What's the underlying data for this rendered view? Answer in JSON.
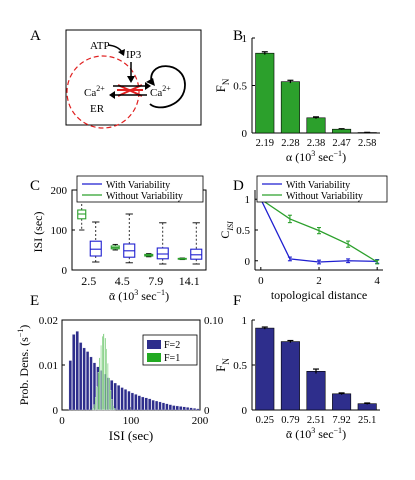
{
  "colors": {
    "green": "#2ca02c",
    "green_dark": "#1f7a1f",
    "blue": "#1f1fd0",
    "navy": "#2e2e8c",
    "red_dashed": "#e02020",
    "hist_green": "#22aa22"
  },
  "panels": {
    "A": {
      "letter": "A",
      "labels": {
        "atp": "ATP",
        "ip3": "IP3",
        "ca_left": "Ca",
        "ca_left_sup": "2+",
        "ca_right": "Ca",
        "ca_right_sup": "2+",
        "er": "ER"
      }
    },
    "B": {
      "letter": "B"
    },
    "C": {
      "letter": "C"
    },
    "D": {
      "letter": "D"
    },
    "E": {
      "letter": "E"
    },
    "F": {
      "letter": "F"
    }
  },
  "chart_data": [
    {
      "panel": "B",
      "type": "bar",
      "categories": [
        "2.19",
        "2.28",
        "2.38",
        "2.47",
        "2.58"
      ],
      "values": [
        0.84,
        0.54,
        0.16,
        0.04,
        0.005
      ],
      "errors": [
        0.015,
        0.015,
        0.01,
        0.005,
        0.002
      ],
      "ylabel": "F",
      "ylabel_sub": "N",
      "xlabel": "α (10",
      "xlabel_sup": "3",
      "xlabel_end": " sec",
      "xlabel_sup2": "−1",
      "xlabel_close": ")",
      "ylim": [
        0,
        1
      ],
      "yticks": [
        "0",
        "0.5",
        "1"
      ],
      "color": "#2ca02c"
    },
    {
      "panel": "C",
      "type": "box",
      "categories": [
        "2.5",
        "4.5",
        "7.9",
        "14.1"
      ],
      "series": [
        {
          "name": "With Variability",
          "color": "#1f1fd0",
          "boxes": [
            {
              "min": 20,
              "q1": 35,
              "median": 52,
              "q3": 72,
              "max": 120
            },
            {
              "min": 18,
              "q1": 32,
              "median": 48,
              "q3": 65,
              "max": 140
            },
            {
              "min": 15,
              "q1": 28,
              "median": 40,
              "q3": 55,
              "max": 118
            },
            {
              "min": 15,
              "q1": 27,
              "median": 38,
              "q3": 52,
              "max": 118
            }
          ]
        },
        {
          "name": "Without Variability",
          "color": "#2ca02c",
          "boxes": [
            {
              "min": 100,
              "q1": 128,
              "median": 140,
              "q3": 150,
              "max": 185
            },
            {
              "min": 50,
              "q1": 53,
              "median": 56,
              "q3": 60,
              "max": 64
            },
            {
              "min": 33,
              "q1": 35,
              "median": 37,
              "q3": 39,
              "max": 41
            },
            {
              "min": 26,
              "q1": 27,
              "median": 28,
              "q3": 29,
              "max": 30
            }
          ]
        }
      ],
      "ylabel": "ISI (sec)",
      "xlabel": "ᾱ (10",
      "xlabel_sup": "3",
      "xlabel_end": " sec",
      "xlabel_sup2": "−1",
      "xlabel_close": ")",
      "ylim": [
        0,
        200
      ],
      "yticks": [
        "0",
        "100",
        "200"
      ],
      "legend_placement": "top"
    },
    {
      "panel": "D",
      "type": "line",
      "x": [
        0,
        1,
        2,
        3,
        4
      ],
      "series": [
        {
          "name": "With Variability",
          "color": "#1f1fd0",
          "values": [
            1.0,
            0.03,
            -0.02,
            0.0,
            -0.01
          ],
          "errors": [
            0,
            0.03,
            0.03,
            0.03,
            0.03
          ]
        },
        {
          "name": "Without Variability",
          "color": "#2ca02c",
          "values": [
            1.0,
            0.68,
            0.49,
            0.27,
            -0.02
          ],
          "errors": [
            0,
            0.06,
            0.05,
            0.05,
            0.03
          ]
        }
      ],
      "ylabel": "C",
      "ylabel_sub": "ISI",
      "xlabel": "topological distance",
      "xlim": [
        -0.2,
        4.2
      ],
      "ylim": [
        -0.15,
        1.15
      ],
      "xticks": [
        "0",
        "2",
        "4"
      ],
      "yticks": [
        "0",
        "0.5",
        "1"
      ],
      "legend_placement": "top"
    },
    {
      "panel": "E",
      "type": "histogram",
      "xlim": [
        0,
        200
      ],
      "xticks": [
        "0",
        "100",
        "200"
      ],
      "ylabel": "Prob. Dens. (s",
      "ylabel_sup": "−1",
      "ylabel_close": ")",
      "xlabel": "ISI (sec)",
      "left_ylim": [
        0,
        0.02
      ],
      "left_yticks": [
        "0",
        "0.01",
        "0.02"
      ],
      "right_ylim": [
        0,
        0.1
      ],
      "right_yticks": [
        "0",
        "0.10"
      ],
      "series": [
        {
          "name": "F=2",
          "axis": "left",
          "color": "#2e2e8c",
          "bin_width": 5,
          "bin_start": 10,
          "values": [
            0.011,
            0.0168,
            0.0175,
            0.015,
            0.0138,
            0.013,
            0.0118,
            0.0105,
            0.0096,
            0.0088,
            0.008,
            0.0072,
            0.0066,
            0.006,
            0.0055,
            0.005,
            0.0046,
            0.0042,
            0.0038,
            0.0035,
            0.0032,
            0.0029,
            0.0027,
            0.0025,
            0.0022,
            0.002,
            0.0018,
            0.0016,
            0.0014,
            0.0012,
            0.001,
            0.0009,
            0.0008,
            0.0007,
            0.0006,
            0.0005,
            0.0004,
            0.0003
          ]
        },
        {
          "name": "F=1",
          "axis": "right",
          "color": "#22aa22",
          "bin_width": 2,
          "bin_start": 44,
          "values": [
            0.002,
            0.006,
            0.014,
            0.026,
            0.042,
            0.058,
            0.072,
            0.082,
            0.085,
            0.08,
            0.068,
            0.052,
            0.036,
            0.022,
            0.012,
            0.005,
            0.002
          ]
        }
      ],
      "legend_placement": "top-right"
    },
    {
      "panel": "F",
      "type": "bar",
      "categories": [
        "0.25",
        "0.79",
        "2.51",
        "7.92",
        "25.1"
      ],
      "values": [
        0.91,
        0.76,
        0.43,
        0.18,
        0.07
      ],
      "errors": [
        0.012,
        0.012,
        0.025,
        0.01,
        0.008
      ],
      "ylabel": "F",
      "ylabel_sub": "N",
      "xlabel": "ᾱ (10",
      "xlabel_sup": "3",
      "xlabel_end": " sec",
      "xlabel_sup2": "−1",
      "xlabel_close": ")",
      "ylim": [
        0,
        1
      ],
      "yticks": [
        "0",
        "0.5",
        "1"
      ],
      "color": "#2e2e8c"
    }
  ]
}
